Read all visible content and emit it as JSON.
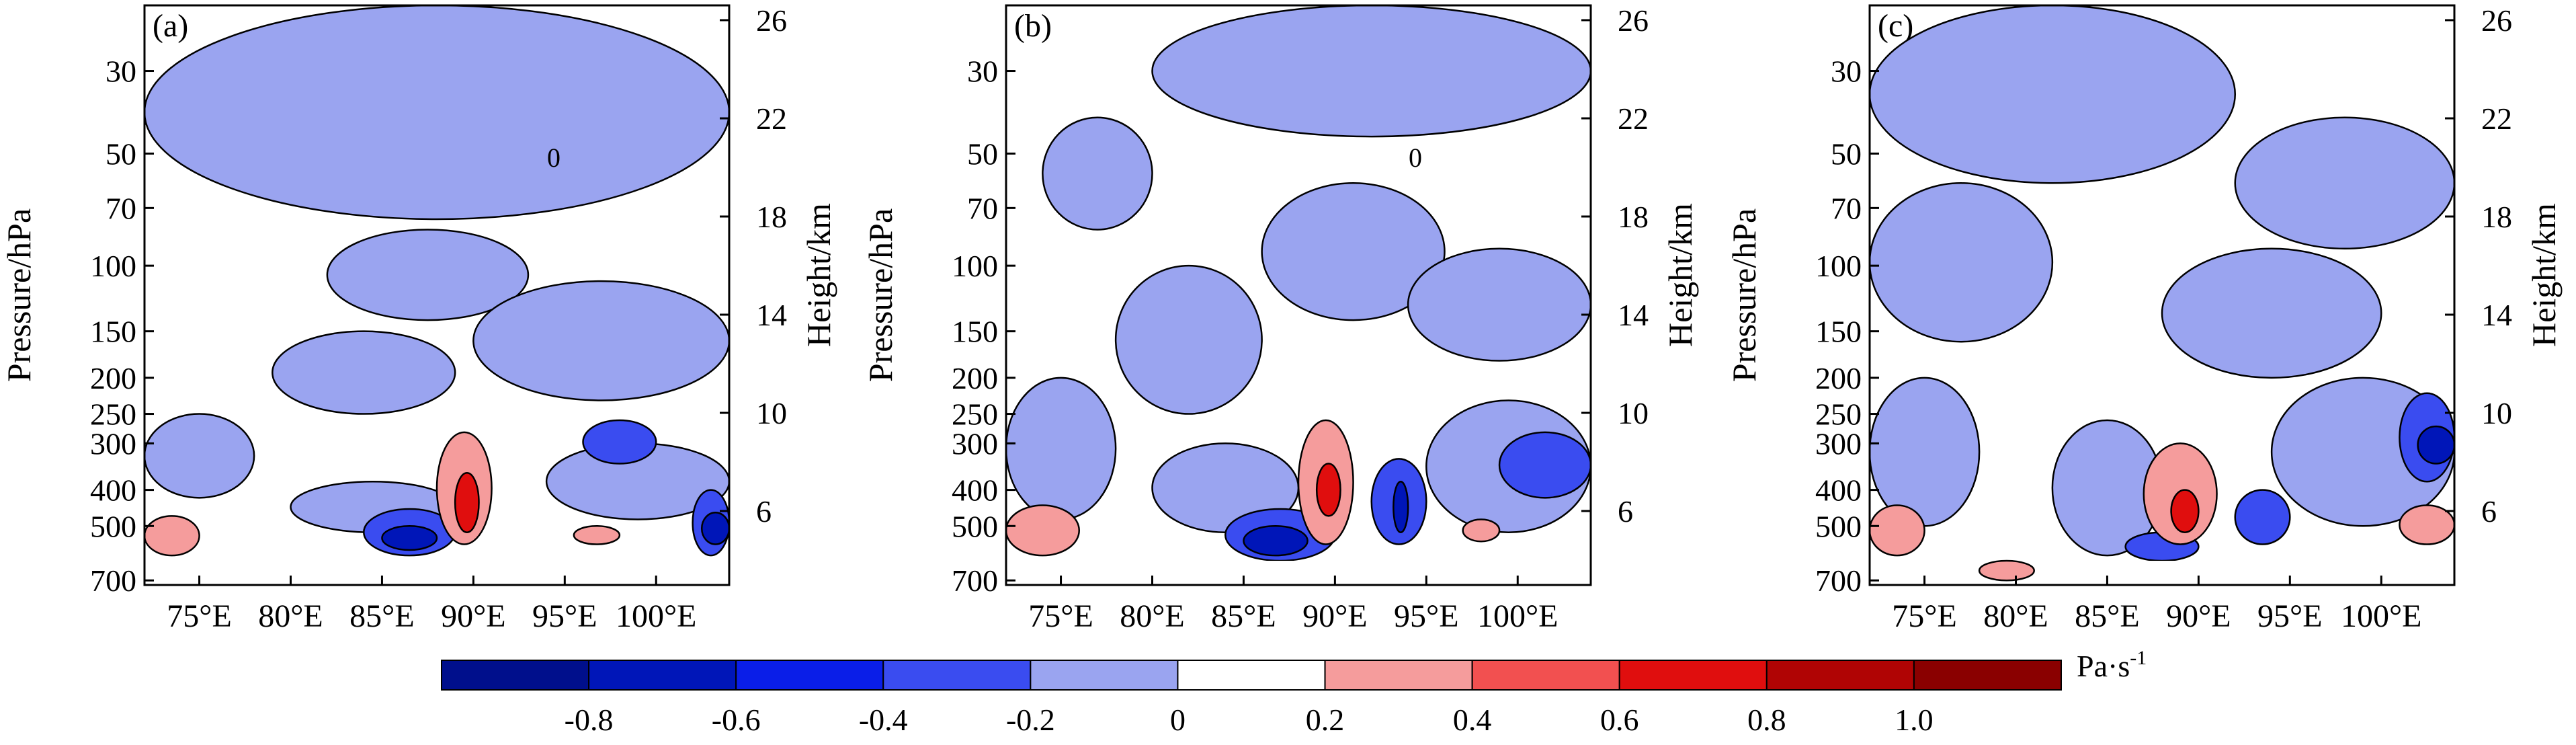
{
  "chart_data": [
    {
      "type": "heatmap",
      "panel_label": "(a)",
      "ylabel": "Pressure/hPa",
      "y2label": "Height/km",
      "x_ticks": [
        "75°E",
        "80°E",
        "85°E",
        "90°E",
        "95°E",
        "100°E"
      ],
      "x_values": [
        75,
        80,
        85,
        90,
        95,
        100
      ],
      "xlim": [
        72,
        104
      ],
      "y_ticks": [
        "30",
        "50",
        "70",
        "100",
        "150",
        "200",
        "250",
        "300",
        "400",
        "500",
        "700"
      ],
      "y_values": [
        30,
        50,
        70,
        100,
        150,
        200,
        250,
        300,
        400,
        500,
        700
      ],
      "y2_ticks": [
        "26",
        "22",
        "18",
        "14",
        "10",
        "6"
      ],
      "y2_values": [
        26,
        22,
        18,
        14,
        10,
        6
      ],
      "contour_labels": [
        "0"
      ],
      "regions": [
        {
          "cls": "lt",
          "lon": [
            72,
            104
          ],
          "p": [
            20,
            75
          ]
        },
        {
          "cls": "lt",
          "lon": [
            82,
            93
          ],
          "p": [
            80,
            140
          ]
        },
        {
          "cls": "lt",
          "lon": [
            79,
            89
          ],
          "p": [
            150,
            250
          ]
        },
        {
          "cls": "lt",
          "lon": [
            90,
            104
          ],
          "p": [
            110,
            230
          ]
        },
        {
          "cls": "lt",
          "lon": [
            72,
            78
          ],
          "p": [
            250,
            420
          ]
        },
        {
          "cls": "lt",
          "lon": [
            80,
            89
          ],
          "p": [
            380,
            520
          ]
        },
        {
          "cls": "lt",
          "lon": [
            94,
            104
          ],
          "p": [
            300,
            480
          ]
        },
        {
          "cls": "d1",
          "lon": [
            84,
            89
          ],
          "p": [
            450,
            600
          ]
        },
        {
          "cls": "d1",
          "lon": [
            96,
            100
          ],
          "p": [
            260,
            340
          ]
        },
        {
          "cls": "d1",
          "lon": [
            102,
            104
          ],
          "p": [
            400,
            600
          ]
        },
        {
          "cls": "d2",
          "lon": [
            85,
            88
          ],
          "p": [
            500,
            580
          ]
        },
        {
          "cls": "d2",
          "lon": [
            102.5,
            104
          ],
          "p": [
            460,
            560
          ]
        },
        {
          "cls": "r1",
          "lon": [
            88,
            91
          ],
          "p": [
            280,
            560
          ]
        },
        {
          "cls": "r1",
          "lon": [
            72,
            75
          ],
          "p": [
            470,
            600
          ]
        },
        {
          "cls": "r1",
          "lon": [
            95.5,
            98
          ],
          "p": [
            500,
            560
          ]
        },
        {
          "cls": "r2",
          "lon": [
            89,
            90.3
          ],
          "p": [
            360,
            520
          ]
        }
      ],
      "masks": [
        {
          "lon": [
            72,
            76
          ],
          "p": [
            620,
            720
          ]
        },
        {
          "lon": [
            85,
            94
          ],
          "p": [
            620,
            720
          ]
        },
        {
          "lon": [
            95,
            103
          ],
          "p": [
            620,
            720
          ]
        }
      ]
    },
    {
      "type": "heatmap",
      "panel_label": "(b)",
      "ylabel": "Pressure/hPa",
      "y2label": "Height/km",
      "x_ticks": [
        "75°E",
        "80°E",
        "85°E",
        "90°E",
        "95°E",
        "100°E"
      ],
      "x_values": [
        75,
        80,
        85,
        90,
        95,
        100
      ],
      "xlim": [
        72,
        104
      ],
      "y_ticks": [
        "30",
        "50",
        "70",
        "100",
        "150",
        "200",
        "250",
        "300",
        "400",
        "500",
        "700"
      ],
      "y_values": [
        30,
        50,
        70,
        100,
        150,
        200,
        250,
        300,
        400,
        500,
        700
      ],
      "y2_ticks": [
        "26",
        "22",
        "18",
        "14",
        "10",
        "6"
      ],
      "y2_values": [
        26,
        22,
        18,
        14,
        10,
        6
      ],
      "contour_labels": [
        "0"
      ],
      "regions": [
        {
          "cls": "lt",
          "lon": [
            80,
            104
          ],
          "p": [
            20,
            45
          ]
        },
        {
          "cls": "lt",
          "lon": [
            74,
            80
          ],
          "p": [
            40,
            80
          ]
        },
        {
          "cls": "lt",
          "lon": [
            86,
            96
          ],
          "p": [
            60,
            140
          ]
        },
        {
          "cls": "lt",
          "lon": [
            78,
            86
          ],
          "p": [
            100,
            250
          ]
        },
        {
          "cls": "lt",
          "lon": [
            94,
            104
          ],
          "p": [
            90,
            180
          ]
        },
        {
          "cls": "lt",
          "lon": [
            72,
            78
          ],
          "p": [
            200,
            480
          ]
        },
        {
          "cls": "lt",
          "lon": [
            80,
            88
          ],
          "p": [
            300,
            520
          ]
        },
        {
          "cls": "lt",
          "lon": [
            95,
            104
          ],
          "p": [
            230,
            520
          ]
        },
        {
          "cls": "d1",
          "lon": [
            84,
            90
          ],
          "p": [
            450,
            620
          ]
        },
        {
          "cls": "d1",
          "lon": [
            92,
            95
          ],
          "p": [
            330,
            560
          ]
        },
        {
          "cls": "d1",
          "lon": [
            99,
            104
          ],
          "p": [
            280,
            420
          ]
        },
        {
          "cls": "d2",
          "lon": [
            85,
            88.5
          ],
          "p": [
            500,
            600
          ]
        },
        {
          "cls": "d2",
          "lon": [
            93.2,
            94
          ],
          "p": [
            380,
            520
          ]
        },
        {
          "cls": "r1",
          "lon": [
            88,
            91
          ],
          "p": [
            260,
            560
          ]
        },
        {
          "cls": "r1",
          "lon": [
            72,
            76
          ],
          "p": [
            440,
            600
          ]
        },
        {
          "cls": "r1",
          "lon": [
            97,
            99
          ],
          "p": [
            480,
            550
          ]
        },
        {
          "cls": "r2",
          "lon": [
            89,
            90.3
          ],
          "p": [
            340,
            470
          ]
        }
      ],
      "masks": [
        {
          "lon": [
            72,
            76
          ],
          "p": [
            620,
            720
          ]
        },
        {
          "lon": [
            86,
            93
          ],
          "p": [
            620,
            720
          ]
        },
        {
          "lon": [
            94,
            102
          ],
          "p": [
            620,
            720
          ]
        }
      ]
    },
    {
      "type": "heatmap",
      "panel_label": "(c)",
      "ylabel": "Pressure/hPa",
      "y2label": "Height/km",
      "x_ticks": [
        "75°E",
        "80°E",
        "85°E",
        "90°E",
        "95°E",
        "100°E"
      ],
      "x_values": [
        75,
        80,
        85,
        90,
        95,
        100
      ],
      "xlim": [
        72,
        104
      ],
      "y_ticks": [
        "30",
        "50",
        "70",
        "100",
        "150",
        "200",
        "250",
        "300",
        "400",
        "500",
        "700"
      ],
      "y_values": [
        30,
        50,
        70,
        100,
        150,
        200,
        250,
        300,
        400,
        500,
        700
      ],
      "y2_ticks": [
        "26",
        "22",
        "18",
        "14",
        "10",
        "6"
      ],
      "y2_values": [
        26,
        22,
        18,
        14,
        10,
        6
      ],
      "contour_labels": [],
      "regions": [
        {
          "cls": "lt",
          "lon": [
            72,
            92
          ],
          "p": [
            20,
            60
          ]
        },
        {
          "cls": "lt",
          "lon": [
            92,
            104
          ],
          "p": [
            40,
            90
          ]
        },
        {
          "cls": "lt",
          "lon": [
            72,
            82
          ],
          "p": [
            60,
            160
          ]
        },
        {
          "cls": "lt",
          "lon": [
            88,
            100
          ],
          "p": [
            90,
            200
          ]
        },
        {
          "cls": "lt",
          "lon": [
            72,
            78
          ],
          "p": [
            200,
            500
          ]
        },
        {
          "cls": "lt",
          "lon": [
            82,
            88
          ],
          "p": [
            260,
            600
          ]
        },
        {
          "cls": "lt",
          "lon": [
            94,
            104
          ],
          "p": [
            200,
            500
          ]
        },
        {
          "cls": "d1",
          "lon": [
            101,
            104
          ],
          "p": [
            220,
            380
          ]
        },
        {
          "cls": "d1",
          "lon": [
            92,
            95
          ],
          "p": [
            400,
            560
          ]
        },
        {
          "cls": "d1",
          "lon": [
            86,
            90
          ],
          "p": [
            520,
            620
          ]
        },
        {
          "cls": "d2",
          "lon": [
            102,
            104
          ],
          "p": [
            270,
            340
          ]
        },
        {
          "cls": "r1",
          "lon": [
            87,
            91
          ],
          "p": [
            300,
            560
          ]
        },
        {
          "cls": "r1",
          "lon": [
            72,
            75
          ],
          "p": [
            440,
            600
          ]
        },
        {
          "cls": "r1",
          "lon": [
            78,
            81
          ],
          "p": [
            620,
            700
          ]
        },
        {
          "cls": "r1",
          "lon": [
            101,
            104
          ],
          "p": [
            440,
            560
          ]
        },
        {
          "cls": "r2",
          "lon": [
            88.5,
            90
          ],
          "p": [
            400,
            520
          ]
        }
      ],
      "masks": [
        {
          "lon": [
            86,
            93
          ],
          "p": [
            620,
            720
          ]
        },
        {
          "lon": [
            94,
            102
          ],
          "p": [
            620,
            720
          ]
        }
      ]
    }
  ],
  "colorbar": {
    "unit": "Pa·s",
    "unit_exp": "-1",
    "colors": [
      "#000f8c",
      "#0016b8",
      "#0a1ee8",
      "#3a4cf0",
      "#9aa4f0",
      "#ffffff",
      "#f59c9c",
      "#f25050",
      "#e00e0e",
      "#b00404",
      "#8a0000"
    ],
    "tick_labels": [
      "-0.8",
      "-0.6",
      "-0.4",
      "-0.2",
      "0",
      "0.2",
      "0.4",
      "0.6",
      "0.8",
      "1.0"
    ]
  }
}
